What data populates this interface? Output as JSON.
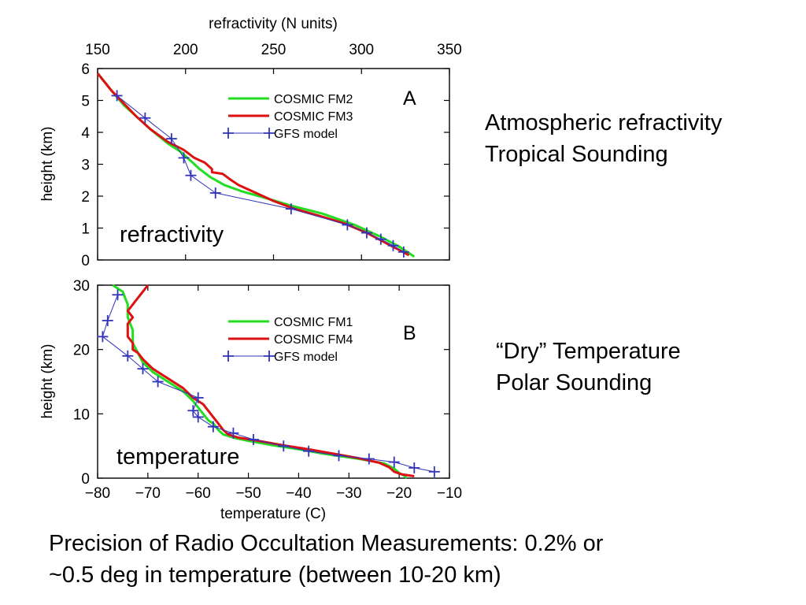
{
  "colors": {
    "series_a": "#22dd22",
    "series_b": "#dd1111",
    "model": "#3333bb",
    "axis": "#000000",
    "background": "#ffffff"
  },
  "side_text": {
    "panel_a_line1": "Atmospheric refractivity",
    "panel_a_line2": "Tropical Sounding",
    "panel_b_line1": "“Dry” Temperature",
    "panel_b_line2": "Polar Sounding"
  },
  "caption": {
    "line1": "Precision of Radio Occultation Measurements: 0.2% or",
    "line2": "~0.5 deg in temperature (between 10-20 km)"
  },
  "chart_data": [
    {
      "type": "line",
      "panel_letter": "A",
      "inner_label": "refractivity",
      "xlabel": "refractivity (N units)",
      "ylabel": "height (km)",
      "x_axis_position": "top",
      "xlim": [
        150,
        350
      ],
      "ylim": [
        0,
        6
      ],
      "xticks": [
        150,
        200,
        250,
        300,
        350
      ],
      "yticks": [
        0,
        1,
        2,
        3,
        4,
        5,
        6
      ],
      "grid": false,
      "legend_position": "top-center",
      "series": [
        {
          "name": "COSMIC FM2",
          "color": "#22dd22",
          "marker": "none",
          "x": [
            150,
            158,
            165,
            172,
            181,
            190,
            197,
            203,
            208,
            214,
            222,
            232,
            245,
            260,
            278,
            296,
            310,
            322,
            330
          ],
          "y": [
            5.85,
            5.3,
            4.85,
            4.5,
            4.05,
            3.65,
            3.4,
            3.1,
            2.85,
            2.6,
            2.35,
            2.15,
            1.95,
            1.7,
            1.45,
            1.1,
            0.75,
            0.4,
            0.1
          ]
        },
        {
          "name": "COSMIC FM3",
          "color": "#dd1111",
          "marker": "none",
          "x": [
            150,
            158,
            165,
            172,
            180,
            190,
            199,
            205,
            211,
            215,
            215,
            221,
            226,
            230,
            238,
            250,
            262,
            275,
            290,
            303,
            315,
            322,
            327
          ],
          "y": [
            5.85,
            5.3,
            4.9,
            4.5,
            4.1,
            3.7,
            3.45,
            3.2,
            3.05,
            2.85,
            2.75,
            2.7,
            2.5,
            2.35,
            2.15,
            1.85,
            1.6,
            1.4,
            1.15,
            0.85,
            0.5,
            0.3,
            0.15
          ]
        },
        {
          "name": "GFS model",
          "color": "#3333bb",
          "marker": "plus",
          "x": [
            161,
            177,
            192,
            199,
            203,
            217,
            260,
            292,
            303,
            311,
            318,
            324
          ],
          "y": [
            5.15,
            4.45,
            3.8,
            3.2,
            2.65,
            2.1,
            1.6,
            1.1,
            0.85,
            0.65,
            0.45,
            0.25
          ]
        }
      ]
    },
    {
      "type": "line",
      "panel_letter": "B",
      "inner_label": "temperature",
      "xlabel": "temperature (C)",
      "ylabel": "height (km)",
      "x_axis_position": "bottom",
      "xlim": [
        -80,
        -10
      ],
      "ylim": [
        0,
        30
      ],
      "xticks": [
        -80,
        -70,
        -60,
        -50,
        -40,
        -30,
        -20,
        -10
      ],
      "yticks": [
        0,
        10,
        20,
        30
      ],
      "grid": false,
      "legend_position": "top-center",
      "series": [
        {
          "name": "COSMIC FM1",
          "color": "#22dd22",
          "marker": "none",
          "x": [
            -77,
            -75,
            -74,
            -74,
            -73,
            -73,
            -72,
            -71,
            -69,
            -66,
            -63,
            -61,
            -60,
            -59,
            -58,
            -57,
            -56,
            -55,
            -53,
            -50,
            -45,
            -40,
            -35,
            -28,
            -23,
            -21,
            -20,
            -19,
            -18.5
          ],
          "y": [
            30,
            29,
            27,
            25,
            23,
            21,
            19.5,
            18,
            16.5,
            15,
            13.5,
            12,
            11,
            10,
            9,
            8.5,
            7.5,
            6.8,
            6.3,
            5.8,
            5.1,
            4.5,
            3.8,
            3,
            2.3,
            1.5,
            0.8,
            0.4,
            0
          ]
        },
        {
          "name": "COSMIC FM4",
          "color": "#dd1111",
          "marker": "none",
          "x": [
            -70,
            -71,
            -72,
            -73,
            -74,
            -73,
            -74,
            -74,
            -73,
            -73,
            -72,
            -71,
            -69,
            -66,
            -63,
            -61,
            -59,
            -58,
            -57,
            -56,
            -55,
            -54,
            -52,
            -48,
            -43,
            -38,
            -33,
            -28,
            -24,
            -22,
            -21,
            -19.5,
            -17
          ],
          "y": [
            30,
            29,
            28,
            27,
            26,
            25,
            24,
            22,
            21,
            20,
            19.5,
            18.5,
            17,
            15.5,
            14,
            12.5,
            11.5,
            10.5,
            9.5,
            8.5,
            7.5,
            6.8,
            6.3,
            5.8,
            5.1,
            4.5,
            3.8,
            3.1,
            2.4,
            1.7,
            1,
            0.6,
            0.3
          ]
        },
        {
          "name": "GFS model",
          "color": "#3333bb",
          "marker": "plus",
          "x": [
            -76,
            -78,
            -79,
            -74,
            -71,
            -68,
            -60,
            -61,
            -60,
            -57,
            -53,
            -49,
            -43,
            -38,
            -32,
            -26,
            -21,
            -17,
            -13
          ],
          "y": [
            28.5,
            24.5,
            22,
            19,
            17,
            15,
            12.5,
            10.5,
            9.5,
            8,
            7,
            6,
            5,
            4.2,
            3.5,
            3,
            2.5,
            1.6,
            1
          ]
        }
      ]
    }
  ]
}
